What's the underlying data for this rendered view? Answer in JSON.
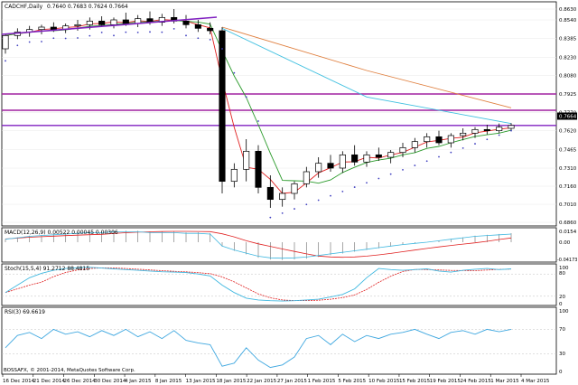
{
  "header": {
    "instrument": "CADCHF,Daily",
    "ohlc": "0.7640 0.7683 0.7624 0.7664"
  },
  "price_scale": {
    "ticks": [
      "0.8630",
      "0.8540",
      "0.8385",
      "0.8230",
      "0.8080",
      "0.7925",
      "0.7770",
      "0.7620",
      "0.7465",
      "0.7310",
      "0.7160",
      "0.7010",
      "0.6860"
    ],
    "current_price": "0.7664"
  },
  "macd": {
    "label": "MACD(12,26,9) 0.00522 0.00045 0.00306",
    "scale_top": "0.0154",
    "scale_zero": "0.00",
    "scale_bottom": "-0.04173"
  },
  "stoch": {
    "label": "Stoch(15,5,4) 91.2712 88.4815",
    "ticks": [
      "100",
      "80",
      "20",
      "0"
    ]
  },
  "rsi": {
    "label": "RSI(3) 69.6619",
    "ticks": [
      "100",
      "70",
      "30",
      "0"
    ]
  },
  "watermark": "BOSSAFX, © 2001-2014, MetaQuotes Software Corp.",
  "date_axis": [
    "16 Dec 2014",
    "21 Dec 2014",
    "26 Dec 2014",
    "30 Dec 2014",
    "4 Jan 2015",
    "8 Jan 2015",
    "13 Jan 2015",
    "18 Jan 2015",
    "22 Jan 2015",
    "27 Jan 2015",
    "1 Feb 2015",
    "5 Feb 2015",
    "10 Feb 2015",
    "15 Feb 2015",
    "19 Feb 2015",
    "24 Feb 2015",
    "1 Mar 2015",
    "4 Mar 2015"
  ],
  "colors": {
    "bull_candle": "#ffffff",
    "bear_candle": "#000000",
    "ma_fast": "#e02020",
    "ma_mid": "#2a9a2a",
    "ma_cyan": "#40c0e0",
    "ma_orange": "#e08040",
    "trend_line": "#8020c0",
    "horizontal_levels": "#a020a0",
    "parabolic_sar": "#4040c0",
    "macd_histogram": "#808080",
    "macd_signal": "#e02020",
    "macd_line": "#40b8e0",
    "stoch_main": "#40b8e0",
    "stoch_signal": "#e02020",
    "rsi_line": "#40a8e0"
  },
  "chart_data": {
    "type": "candlestick",
    "x": [
      "16 Dec 2014",
      "21 Dec 2014",
      "26 Dec 2014",
      "30 Dec 2014",
      "4 Jan 2015",
      "8 Jan 2015",
      "13 Jan 2015",
      "18 Jan 2015",
      "22 Jan 2015",
      "27 Jan 2015",
      "1 Feb 2015",
      "5 Feb 2015",
      "10 Feb 2015",
      "15 Feb 2015",
      "19 Feb 2015",
      "24 Feb 2015",
      "1 Mar 2015",
      "4 Mar 2015"
    ],
    "candles": [
      {
        "o": 0.83,
        "h": 0.842,
        "l": 0.826,
        "c": 0.841
      },
      {
        "o": 0.841,
        "h": 0.847,
        "l": 0.838,
        "c": 0.844
      },
      {
        "o": 0.844,
        "h": 0.849,
        "l": 0.84,
        "c": 0.846
      },
      {
        "o": 0.846,
        "h": 0.85,
        "l": 0.842,
        "c": 0.848
      },
      {
        "o": 0.848,
        "h": 0.852,
        "l": 0.844,
        "c": 0.846
      },
      {
        "o": 0.846,
        "h": 0.851,
        "l": 0.843,
        "c": 0.849
      },
      {
        "o": 0.849,
        "h": 0.854,
        "l": 0.845,
        "c": 0.85
      },
      {
        "o": 0.85,
        "h": 0.856,
        "l": 0.846,
        "c": 0.853
      },
      {
        "o": 0.853,
        "h": 0.857,
        "l": 0.848,
        "c": 0.85
      },
      {
        "o": 0.85,
        "h": 0.856,
        "l": 0.847,
        "c": 0.854
      },
      {
        "o": 0.854,
        "h": 0.86,
        "l": 0.849,
        "c": 0.851
      },
      {
        "o": 0.851,
        "h": 0.858,
        "l": 0.848,
        "c": 0.855
      },
      {
        "o": 0.855,
        "h": 0.861,
        "l": 0.85,
        "c": 0.852
      },
      {
        "o": 0.852,
        "h": 0.859,
        "l": 0.849,
        "c": 0.856
      },
      {
        "o": 0.856,
        "h": 0.863,
        "l": 0.851,
        "c": 0.853
      },
      {
        "o": 0.853,
        "h": 0.858,
        "l": 0.847,
        "c": 0.85
      },
      {
        "o": 0.85,
        "h": 0.854,
        "l": 0.844,
        "c": 0.847
      },
      {
        "o": 0.847,
        "h": 0.852,
        "l": 0.842,
        "c": 0.845
      },
      {
        "o": 0.845,
        "h": 0.848,
        "l": 0.71,
        "c": 0.72
      },
      {
        "o": 0.72,
        "h": 0.735,
        "l": 0.715,
        "c": 0.73
      },
      {
        "o": 0.73,
        "h": 0.755,
        "l": 0.72,
        "c": 0.745
      },
      {
        "o": 0.745,
        "h": 0.75,
        "l": 0.71,
        "c": 0.715
      },
      {
        "o": 0.715,
        "h": 0.725,
        "l": 0.698,
        "c": 0.705
      },
      {
        "o": 0.705,
        "h": 0.715,
        "l": 0.699,
        "c": 0.71
      },
      {
        "o": 0.71,
        "h": 0.72,
        "l": 0.705,
        "c": 0.718
      },
      {
        "o": 0.718,
        "h": 0.732,
        "l": 0.715,
        "c": 0.728
      },
      {
        "o": 0.728,
        "h": 0.74,
        "l": 0.723,
        "c": 0.735
      },
      {
        "o": 0.735,
        "h": 0.742,
        "l": 0.728,
        "c": 0.731
      },
      {
        "o": 0.731,
        "h": 0.745,
        "l": 0.727,
        "c": 0.742
      },
      {
        "o": 0.742,
        "h": 0.75,
        "l": 0.733,
        "c": 0.736
      },
      {
        "o": 0.736,
        "h": 0.745,
        "l": 0.732,
        "c": 0.742
      },
      {
        "o": 0.742,
        "h": 0.748,
        "l": 0.737,
        "c": 0.74
      },
      {
        "o": 0.74,
        "h": 0.746,
        "l": 0.735,
        "c": 0.744
      },
      {
        "o": 0.744,
        "h": 0.752,
        "l": 0.74,
        "c": 0.748
      },
      {
        "o": 0.748,
        "h": 0.756,
        "l": 0.744,
        "c": 0.753
      },
      {
        "o": 0.753,
        "h": 0.76,
        "l": 0.748,
        "c": 0.757
      },
      {
        "o": 0.757,
        "h": 0.762,
        "l": 0.75,
        "c": 0.752
      },
      {
        "o": 0.752,
        "h": 0.76,
        "l": 0.748,
        "c": 0.758
      },
      {
        "o": 0.758,
        "h": 0.764,
        "l": 0.754,
        "c": 0.76
      },
      {
        "o": 0.76,
        "h": 0.765,
        "l": 0.756,
        "c": 0.763
      },
      {
        "o": 0.763,
        "h": 0.767,
        "l": 0.759,
        "c": 0.762
      },
      {
        "o": 0.762,
        "h": 0.768,
        "l": 0.76,
        "c": 0.765
      },
      {
        "o": 0.764,
        "h": 0.7683,
        "l": 0.7624,
        "c": 0.7664
      }
    ],
    "ylim": [
      0.686,
      0.866
    ],
    "horizontal_levels": [
      0.7925,
      0.779,
      0.7664
    ],
    "grid": true
  }
}
